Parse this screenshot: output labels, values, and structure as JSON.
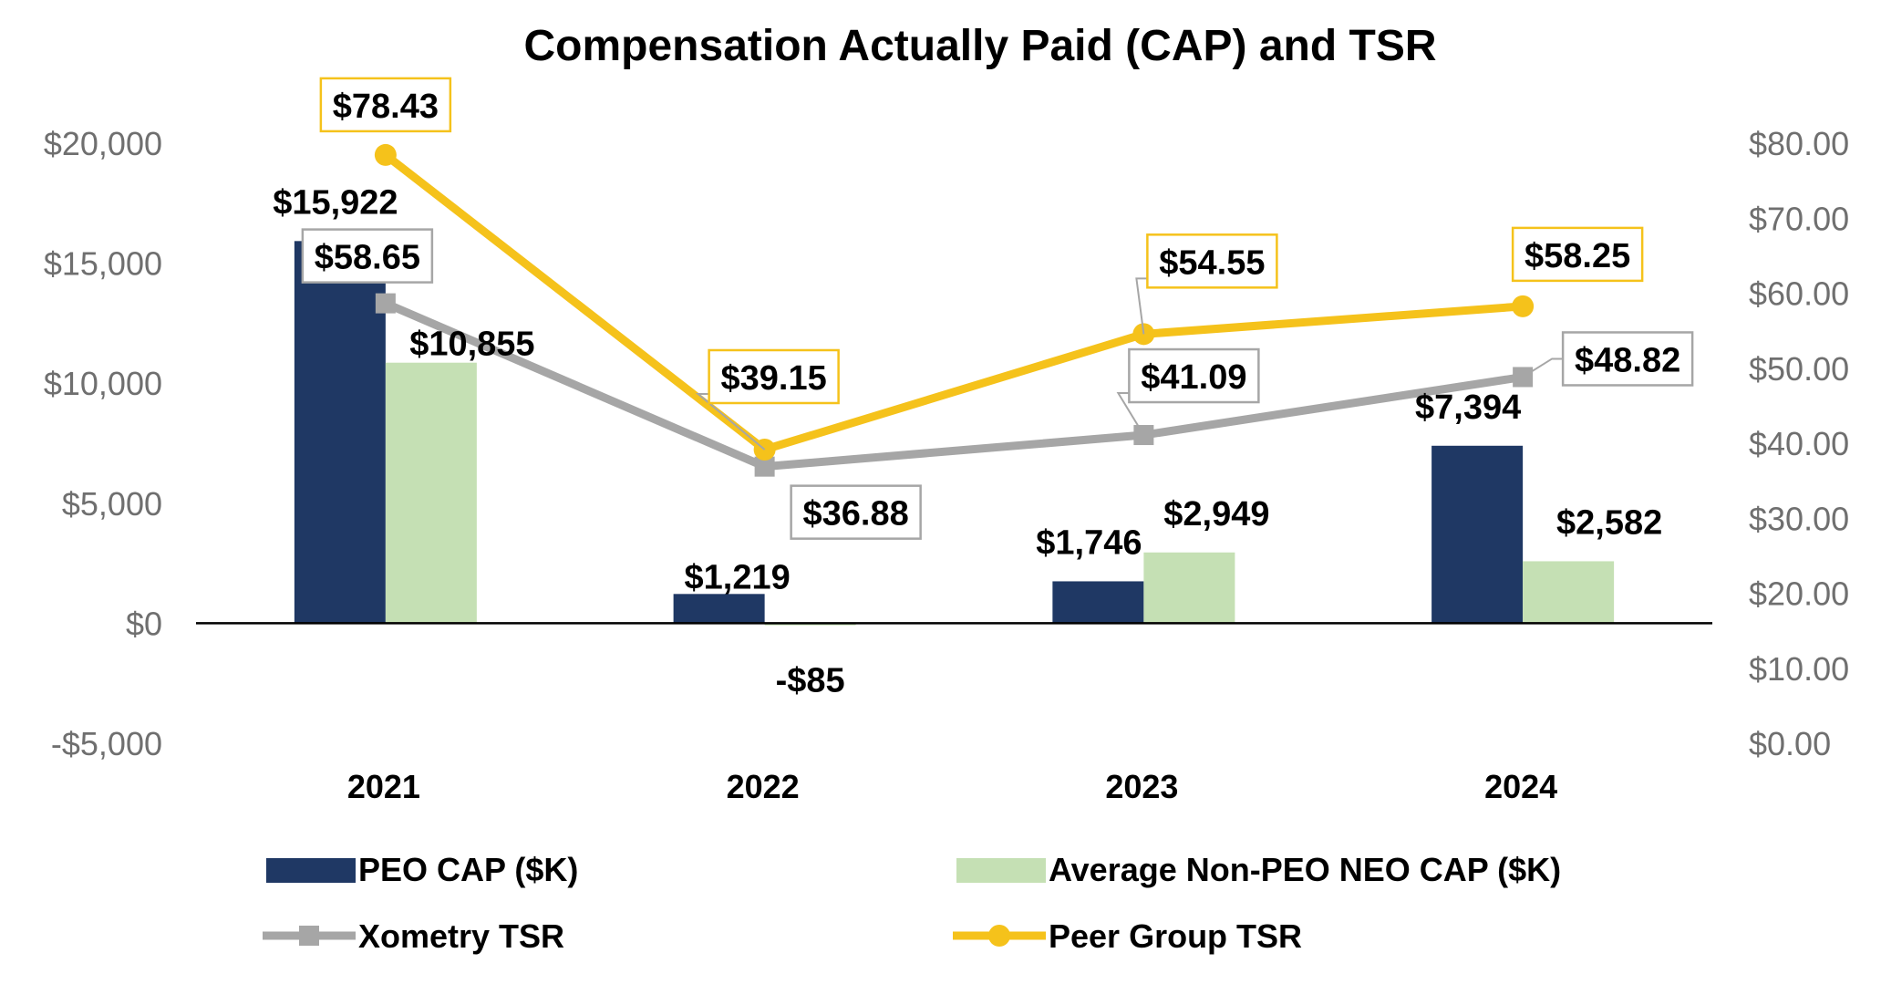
{
  "chart_data": {
    "type": "bar",
    "title": "Compensation Actually Paid (CAP) and TSR",
    "categories": [
      "2021",
      "2022",
      "2023",
      "2024"
    ],
    "y_left": {
      "ylim": [
        -5000,
        20000
      ],
      "ticks": [
        20000,
        15000,
        10000,
        5000,
        0,
        -5000
      ],
      "tick_labels": [
        "$20,000",
        "$15,000",
        "$10,000",
        "$5,000",
        "$0",
        "-$5,000"
      ]
    },
    "y_right": {
      "ylim": [
        0,
        80
      ],
      "ticks": [
        80,
        70,
        60,
        50,
        40,
        30,
        20,
        10,
        0
      ],
      "tick_labels": [
        "$80.00",
        "$70.00",
        "$60.00",
        "$50.00",
        "$40.00",
        "$30.00",
        "$20.00",
        "$10.00",
        "$0.00"
      ]
    },
    "bar_series": [
      {
        "name": "PEO CAP ($K)",
        "color": "#1f3864",
        "axis": "left",
        "values": [
          15922,
          1219,
          1746,
          7394
        ],
        "labels": [
          "$15,922",
          "$1,219",
          "$1,746",
          "$7,394"
        ]
      },
      {
        "name": "Average Non-PEO NEO CAP ($K)",
        "color": "#c5e0b4",
        "axis": "left",
        "values": [
          10855,
          -85,
          2949,
          2582
        ],
        "labels": [
          "$10,855",
          "-$85",
          "$2,949",
          "$2,582"
        ]
      }
    ],
    "line_series": [
      {
        "name": "Xometry TSR",
        "color": "#a6a6a6",
        "marker": "square",
        "axis": "right",
        "values": [
          58.65,
          36.88,
          41.09,
          48.82
        ],
        "labels": [
          "$58.65",
          "$36.88",
          "$41.09",
          "$48.82"
        ]
      },
      {
        "name": "Peer Group TSR",
        "color": "#f5c21b",
        "marker": "circle",
        "axis": "right",
        "values": [
          78.43,
          39.15,
          54.55,
          58.25
        ],
        "labels": [
          "$78.43",
          "$39.15",
          "$54.55",
          "$58.25"
        ]
      }
    ],
    "legend_position": "bottom"
  }
}
